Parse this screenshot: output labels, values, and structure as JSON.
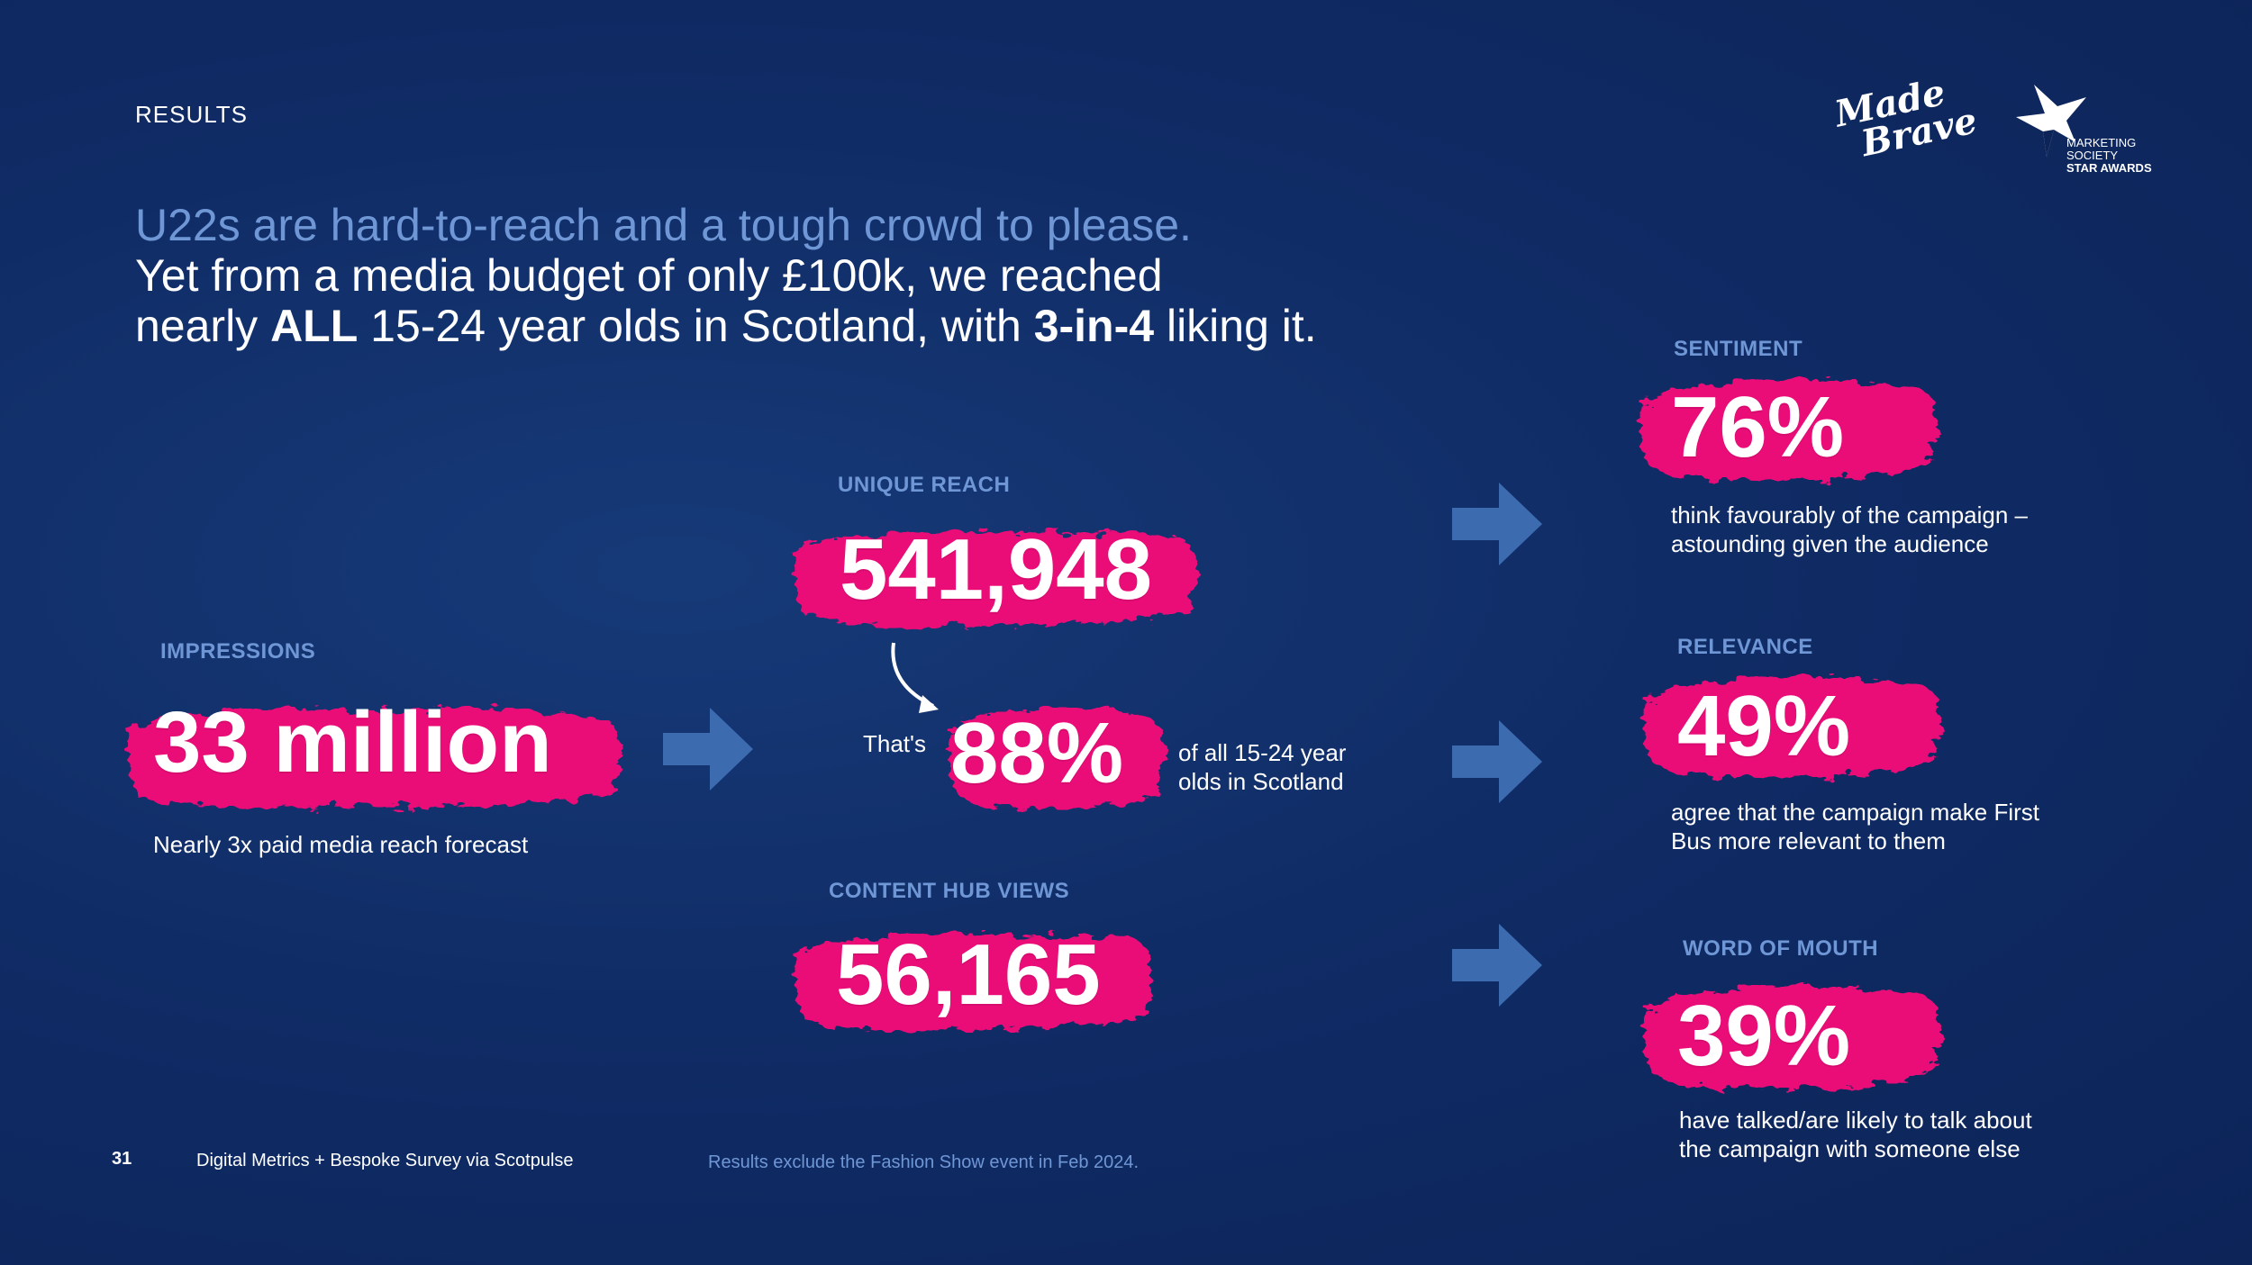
{
  "header": {
    "section": "RESULTS",
    "line1": "U22s are hard-to-reach and a tough crowd to please.",
    "line2": "Yet from a media budget of only £100k, we reached",
    "line3_pre": "nearly ",
    "line3_bold1": "ALL",
    "line3_mid": " 15-24 year olds in Scotland, with ",
    "line3_bold2": "3-in-4",
    "line3_post": " liking it."
  },
  "logos": {
    "made_brave_line1": "Made",
    "made_brave_line2": "Brave",
    "ms_line1": "MARKETING",
    "ms_line2": "SOCIETY",
    "ms_line3": "STAR AWARDS"
  },
  "impressions": {
    "label": "IMPRESSIONS",
    "value": "33 million",
    "caption": "Nearly 3x paid media reach forecast"
  },
  "unique_reach": {
    "label": "UNIQUE REACH",
    "value": "541,948",
    "thats": "That's",
    "percent": "88%",
    "percent_caption_1": "of all 15-24 year",
    "percent_caption_2": "olds in Scotland"
  },
  "content_hub": {
    "label": "CONTENT HUB VIEWS",
    "value": "56,165"
  },
  "sentiment": {
    "label": "SENTIMENT",
    "value": "76%",
    "caption_1": "think favourably of the campaign –",
    "caption_2": "astounding given the audience"
  },
  "relevance": {
    "label": "RELEVANCE",
    "value": "49%",
    "caption_1": "agree that the campaign make First",
    "caption_2": "Bus more relevant to them"
  },
  "word_of_mouth": {
    "label": "WORD OF MOUTH",
    "value": "39%",
    "caption_1": "have talked/are likely to talk about",
    "caption_2": "the campaign with someone else"
  },
  "footer": {
    "page_number": "31",
    "source": "Digital Metrics + Bespoke Survey via Scotpulse",
    "note": "Results exclude the Fashion Show event in Feb 2024."
  },
  "colors": {
    "background": "#102c66",
    "accent_pink": "#ea1178",
    "label_blue": "#6f97d6",
    "arrow_blue": "#3d6bb0"
  }
}
